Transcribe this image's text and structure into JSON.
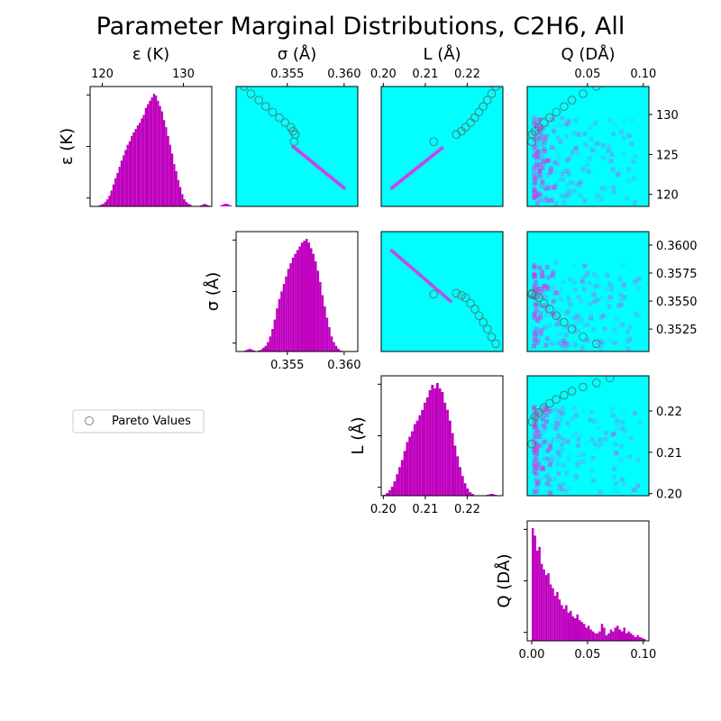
{
  "title": "Parameter Marginal Distributions, C2H6, All",
  "colors": {
    "hist": "#bf00bf",
    "background": "#00ffff",
    "density": "#c93fe6",
    "pareto": "#4a7e7e"
  },
  "legend": {
    "label": "Pareto Values",
    "position": "left-middle"
  },
  "chart_data": {
    "type": "corner-plot",
    "parameters": [
      {
        "name": "epsilon",
        "label": "ε (K)",
        "range": [
          118.5,
          133.5
        ],
        "ticks": [
          120,
          125,
          130
        ],
        "top_ticks": [
          120,
          130
        ],
        "tick_labels": [
          "120",
          "125",
          "130"
        ]
      },
      {
        "name": "sigma",
        "label": "σ (Å)",
        "range": [
          0.3505,
          0.3612
        ],
        "ticks": [
          0.3525,
          0.355,
          0.3575,
          0.36
        ],
        "bottom_ticks": [
          0.355,
          0.36
        ],
        "tick_labels": [
          "0.3525",
          "0.3550",
          "0.3575",
          "0.3600"
        ],
        "bottom_tick_labels": [
          "0.355",
          "0.360"
        ]
      },
      {
        "name": "L",
        "label": "L (Å)",
        "range": [
          0.1995,
          0.2285
        ],
        "ticks": [
          0.2,
          0.21,
          0.22
        ],
        "tick_labels": [
          "0.20",
          "0.21",
          "0.22"
        ]
      },
      {
        "name": "Q",
        "label": "Q (DÅ)",
        "range": [
          -0.004,
          0.105
        ],
        "ticks": [
          0.0,
          0.05,
          0.1
        ],
        "top_ticks": [
          0.05,
          0.1
        ],
        "tick_labels": [
          "0.00",
          "0.05",
          "0.10"
        ]
      }
    ],
    "histograms": {
      "epsilon": {
        "bin_start": 119.5,
        "bin_width": 0.25,
        "counts": [
          1,
          2,
          3,
          5,
          8,
          12,
          18,
          25,
          32,
          38,
          45,
          52,
          58,
          64,
          70,
          74,
          80,
          84,
          88,
          92,
          95,
          100,
          104,
          112,
          116,
          120,
          124,
          128,
          126,
          120,
          114,
          108,
          98,
          90,
          80,
          70,
          60,
          48,
          40,
          30,
          22,
          14,
          8,
          5,
          3,
          2,
          0,
          0,
          0,
          0,
          1,
          2,
          3,
          2,
          1,
          0,
          0,
          0,
          0,
          0,
          1,
          2,
          3,
          3,
          2,
          1,
          0
        ]
      },
      "sigma": {
        "bin_start": 0.3512,
        "bin_width": 0.0002,
        "counts": [
          1,
          2,
          3,
          2,
          1,
          0,
          1,
          2,
          4,
          6,
          10,
          16,
          24,
          34,
          46,
          56,
          64,
          72,
          80,
          88,
          94,
          100,
          104,
          108,
          112,
          116,
          118,
          120,
          116,
          110,
          104,
          96,
          86,
          74,
          60,
          48,
          36,
          26,
          16,
          10,
          6,
          3,
          1
        ]
      },
      "L": {
        "bin_start": 0.2,
        "bin_width": 0.0006,
        "counts": [
          1,
          3,
          6,
          10,
          16,
          24,
          32,
          40,
          50,
          60,
          66,
          72,
          80,
          84,
          90,
          96,
          104,
          110,
          118,
          124,
          120,
          126,
          120,
          116,
          104,
          96,
          84,
          70,
          56,
          44,
          32,
          22,
          14,
          8,
          4,
          2,
          0,
          0,
          0,
          0,
          0,
          1,
          2,
          2,
          1
        ]
      },
      "Q": {
        "bin_start": 0.0,
        "bin_width": 0.002,
        "counts": [
          120,
          112,
          96,
          100,
          82,
          76,
          70,
          72,
          60,
          56,
          48,
          52,
          44,
          38,
          34,
          38,
          30,
          32,
          26,
          24,
          28,
          22,
          20,
          18,
          14,
          16,
          12,
          10,
          8,
          8,
          10,
          18,
          14,
          6,
          8,
          12,
          10,
          14,
          16,
          12,
          10,
          14,
          8,
          10,
          8,
          6,
          4,
          6,
          4,
          3,
          2
        ]
      }
    },
    "density_lines": {
      "epsilon_vs_sigma": {
        "x": [
          0.3555,
          0.36
        ],
        "y": [
          126.0,
          120.8
        ]
      },
      "epsilon_vs_L": {
        "x": [
          0.202,
          0.214
        ],
        "y": [
          120.8,
          125.8
        ]
      },
      "sigma_vs_L": {
        "x": [
          0.202,
          0.216
        ],
        "y": [
          0.3595,
          0.355
        ]
      }
    },
    "pareto": {
      "epsilon": [
        135,
        133.5,
        132.6,
        131.8,
        131.0,
        130.3,
        129.6,
        129.0,
        128.4,
        127.9,
        127.5,
        126.6
      ],
      "sigma": [
        0.35,
        0.3512,
        0.3518,
        0.3525,
        0.3531,
        0.3537,
        0.3543,
        0.3548,
        0.3553,
        0.3555,
        0.3557,
        0.3556
      ],
      "L": [
        0.228,
        0.2268,
        0.2258,
        0.2248,
        0.2238,
        0.2228,
        0.2218,
        0.2208,
        0.2196,
        0.2186,
        0.2174,
        0.212
      ],
      "Q": [
        0.07,
        0.058,
        0.046,
        0.036,
        0.029,
        0.022,
        0.016,
        0.011,
        0.0065,
        0.003,
        0.0005,
        0.0
      ]
    }
  }
}
